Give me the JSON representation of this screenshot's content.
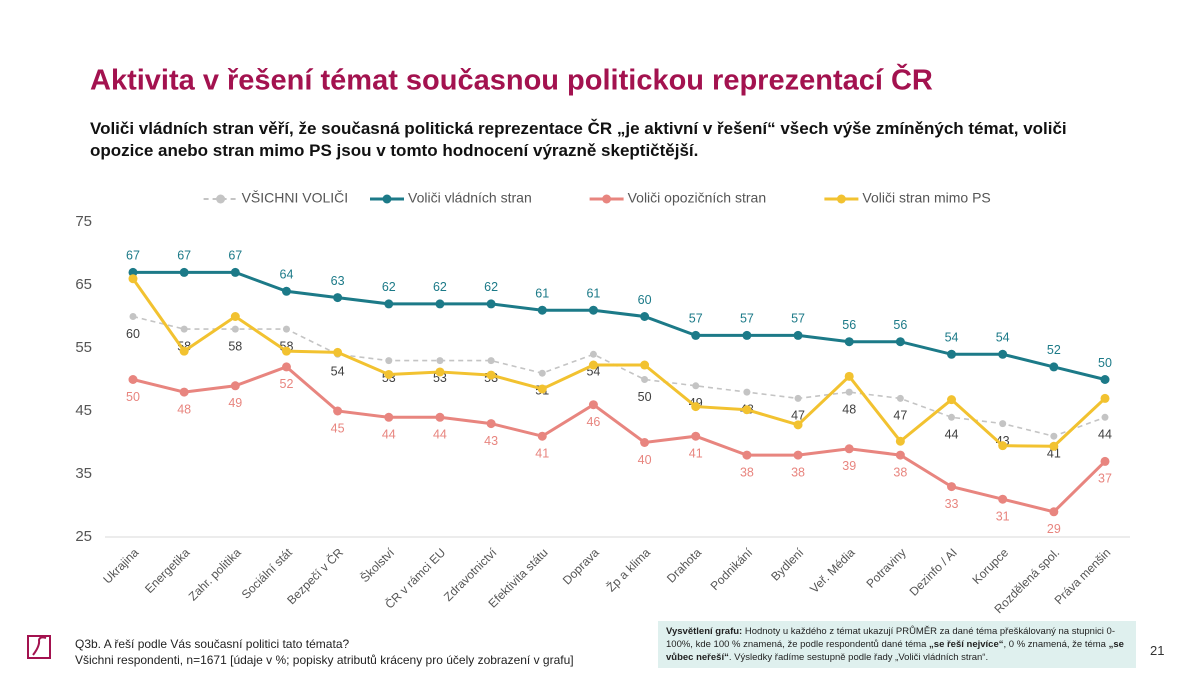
{
  "chart_data": {
    "type": "line",
    "title": "Aktivita v řešení témat současnou politickou reprezentací ČR",
    "subtitle": "Voliči vládních stran věří, že současná politická reprezentace ČR „je aktivní v řešení“ všech výše zmíněných témat, voliči opozice anebo stran mimo PS jsou v tomto hodnocení výrazně skeptičtější.",
    "categories": [
      "Ukrajina",
      "Energetika",
      "Zahr. politika",
      "Sociální stát",
      "Bezpečí v ČR",
      "Školství",
      "ČR v rámci EU",
      "Zdravotnictví",
      "Efektivita státu",
      "Doprava",
      "Žp a klima",
      "Drahota",
      "Podnikání",
      "Bydlení",
      "Veř. Média",
      "Potraviny",
      "Dezinfo / AI",
      "Korupce",
      "Rozdělená spol.",
      "Práva menšin"
    ],
    "ylim": [
      25,
      75
    ],
    "yticks": [
      25,
      35,
      45,
      55,
      65,
      75
    ],
    "grid": false,
    "legend": "top",
    "series": [
      {
        "name": "VŠICHNI VOLIČI",
        "color": "#c4c4c4",
        "dashed": true,
        "label_position": "below",
        "label_color": "#404040",
        "values": [
          60,
          58,
          58,
          58,
          54,
          53,
          53,
          53,
          51,
          54,
          50,
          49,
          48,
          47,
          48,
          47,
          44,
          43,
          41,
          44
        ]
      },
      {
        "name": "Voliči vládních stran",
        "color": "#1c7a88",
        "dashed": false,
        "label_position": "above",
        "label_color": "#1c7a88",
        "values": [
          67,
          67,
          67,
          64,
          63,
          62,
          62,
          62,
          61,
          61,
          60,
          57,
          57,
          57,
          56,
          56,
          54,
          54,
          52,
          50
        ]
      },
      {
        "name": "Voliči opozičních stran",
        "color": "#e8857f",
        "dashed": false,
        "label_position": "below",
        "label_color": "#e8857f",
        "values": [
          50,
          48,
          49,
          52,
          45,
          44,
          44,
          43,
          41,
          46,
          40,
          41,
          38,
          38,
          39,
          38,
          33,
          31,
          29,
          37
        ]
      },
      {
        "name": "Voliči stran mimo PS",
        "color": "#f2c230",
        "dashed": false,
        "label_position": "none",
        "label_color": "#f2c230",
        "values": [
          66,
          54.5,
          60,
          54.5,
          54.3,
          50.8,
          51.2,
          50.7,
          48.5,
          52.3,
          52.3,
          45.7,
          45.2,
          42.8,
          50.5,
          40.2,
          46.8,
          39.5,
          39.4,
          47
        ]
      }
    ]
  },
  "footnote": [
    "Q3b. A řeší podle Vás současní politici tato témata?",
    "Všichni respondenti, n=1671 [údaje v %; popisky atributů kráceny pro účely zobrazení v grafu]"
  ],
  "explanation": [
    "Vysvětlení grafu:",
    " Hodnoty u každého z témat ukazují PRŮMĚR za dané téma přeškálovaný na stupnici 0-100%, kde 100 % znamená, že podle respondentů dané téma ",
    "„se řeší nejvíce“",
    ", 0 % znamená, že téma ",
    "„se vůbec neřeší“",
    ". Výsledky řadíme sestupně podle řady „Voliči vládních stran“."
  ],
  "page_number": "21"
}
